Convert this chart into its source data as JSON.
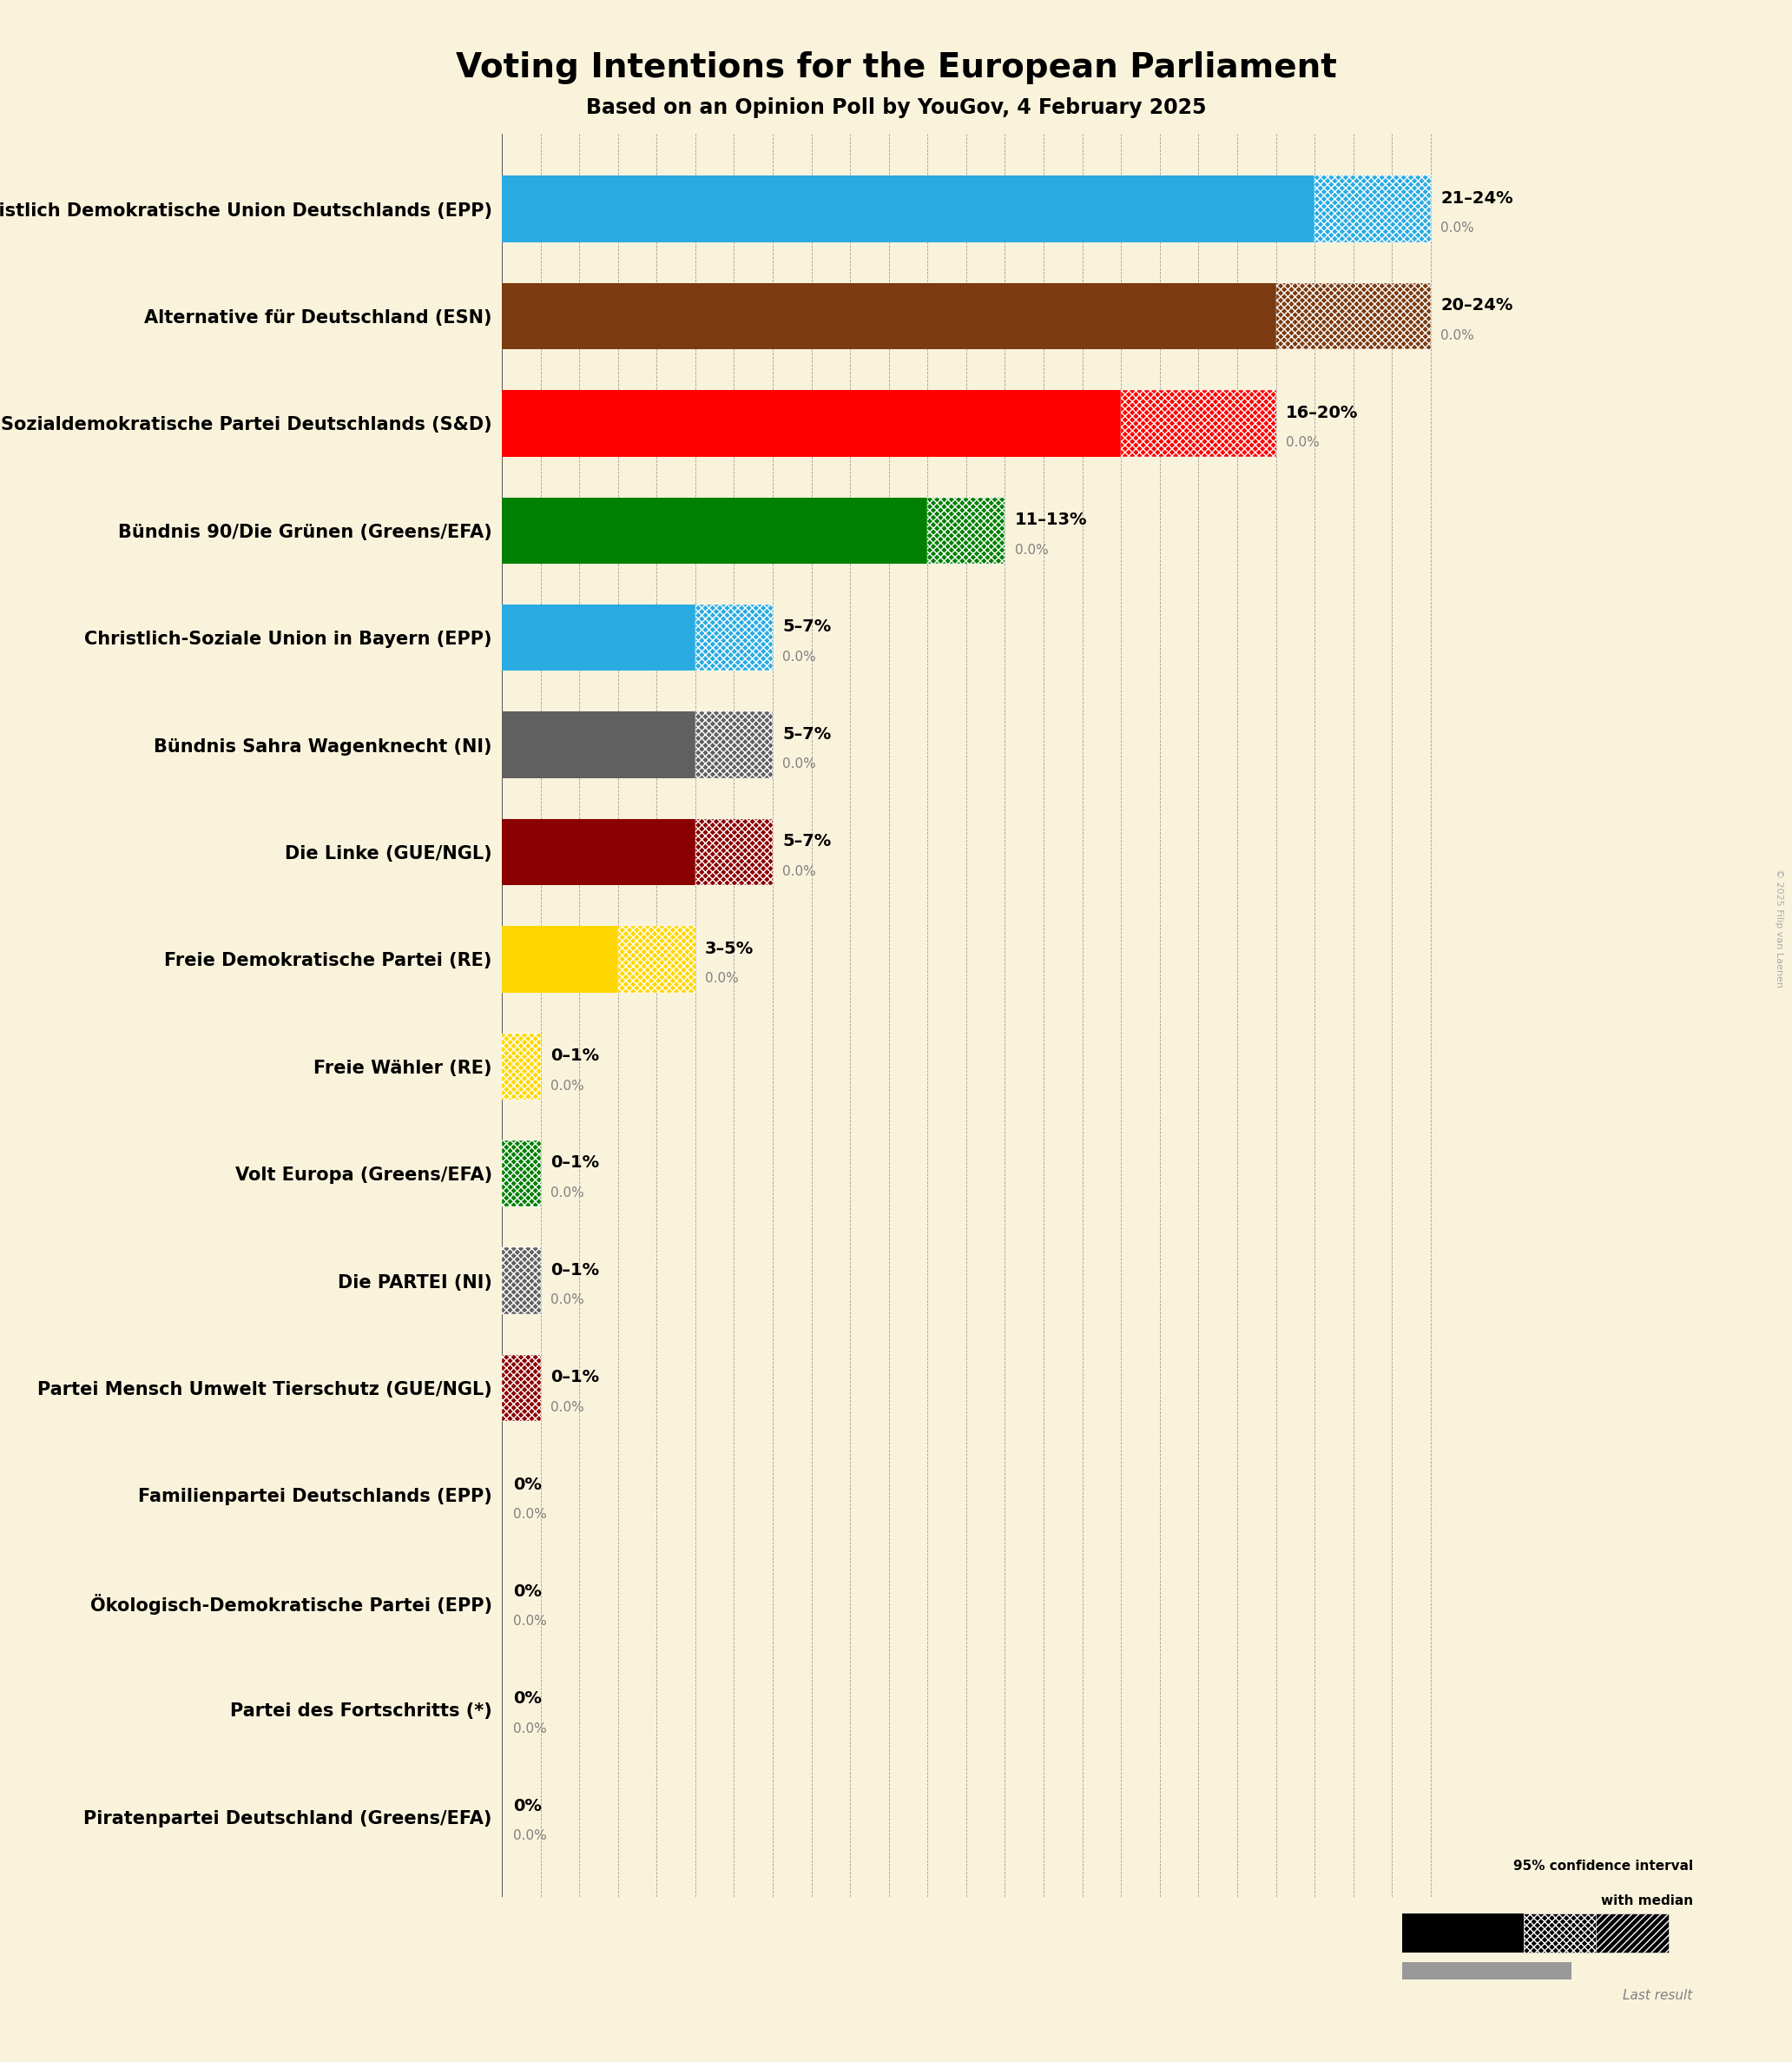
{
  "title": "Voting Intentions for the European Parliament",
  "subtitle": "Based on an Opinion Poll by YouGov, 4 February 2025",
  "watermark": "© 2025 Filip van Laenen",
  "background_color": "#faf3dc",
  "parties": [
    {
      "name": "Christlich Demokratische Union Deutschlands (EPP)",
      "color": "#29abe2",
      "median": 21,
      "ci_low": 21,
      "ci_high": 24,
      "last": 0.0,
      "label": "21–24%"
    },
    {
      "name": "Alternative für Deutschland (ESN)",
      "color": "#7b3a10",
      "median": 20,
      "ci_low": 20,
      "ci_high": 24,
      "last": 0.0,
      "label": "20–24%"
    },
    {
      "name": "Sozialdemokratische Partei Deutschlands (S&D)",
      "color": "#ff0000",
      "median": 16,
      "ci_low": 16,
      "ci_high": 20,
      "last": 0.0,
      "label": "16–20%"
    },
    {
      "name": "Bündnis 90/Die Grünen (Greens/EFA)",
      "color": "#008000",
      "median": 11,
      "ci_low": 11,
      "ci_high": 13,
      "last": 0.0,
      "label": "11–13%"
    },
    {
      "name": "Christlich-Soziale Union in Bayern (EPP)",
      "color": "#29abe2",
      "median": 5,
      "ci_low": 5,
      "ci_high": 7,
      "last": 0.0,
      "label": "5–7%"
    },
    {
      "name": "Bündnis Sahra Wagenknecht (NI)",
      "color": "#606060",
      "median": 5,
      "ci_low": 5,
      "ci_high": 7,
      "last": 0.0,
      "label": "5–7%"
    },
    {
      "name": "Die Linke (GUE/NGL)",
      "color": "#8b0000",
      "median": 5,
      "ci_low": 5,
      "ci_high": 7,
      "last": 0.0,
      "label": "5–7%"
    },
    {
      "name": "Freie Demokratische Partei (RE)",
      "color": "#ffd700",
      "median": 3,
      "ci_low": 3,
      "ci_high": 5,
      "last": 0.0,
      "label": "3–5%"
    },
    {
      "name": "Freie Wähler (RE)",
      "color": "#ffd700",
      "median": 0,
      "ci_low": 0,
      "ci_high": 1,
      "last": 0.0,
      "label": "0–1%"
    },
    {
      "name": "Volt Europa (Greens/EFA)",
      "color": "#008000",
      "median": 0,
      "ci_low": 0,
      "ci_high": 1,
      "last": 0.0,
      "label": "0–1%"
    },
    {
      "name": "Die PARTEI (NI)",
      "color": "#606060",
      "median": 0,
      "ci_low": 0,
      "ci_high": 1,
      "last": 0.0,
      "label": "0–1%"
    },
    {
      "name": "Partei Mensch Umwelt Tierschutz (GUE/NGL)",
      "color": "#8b0000",
      "median": 0,
      "ci_low": 0,
      "ci_high": 1,
      "last": 0.0,
      "label": "0–1%"
    },
    {
      "name": "Familienpartei Deutschlands (EPP)",
      "color": "#29abe2",
      "median": 0,
      "ci_low": 0,
      "ci_high": 0,
      "last": 0.0,
      "label": "0%"
    },
    {
      "name": "Ökologisch-Demokratische Partei (EPP)",
      "color": "#29abe2",
      "median": 0,
      "ci_low": 0,
      "ci_high": 0,
      "last": 0.0,
      "label": "0%"
    },
    {
      "name": "Partei des Fortschritts (*)",
      "color": "#b0b0b0",
      "median": 0,
      "ci_low": 0,
      "ci_high": 0,
      "last": 0.0,
      "label": "0%"
    },
    {
      "name": "Piratenpartei Deutschland (Greens/EFA)",
      "color": "#008000",
      "median": 0,
      "ci_low": 0,
      "ci_high": 0,
      "last": 0.0,
      "label": "0%"
    }
  ],
  "xlim_max": 25,
  "bar_height": 0.62,
  "label_fontsize": 15,
  "value_fontsize": 14,
  "last_fontsize": 11,
  "title_fontsize": 28,
  "subtitle_fontsize": 17
}
